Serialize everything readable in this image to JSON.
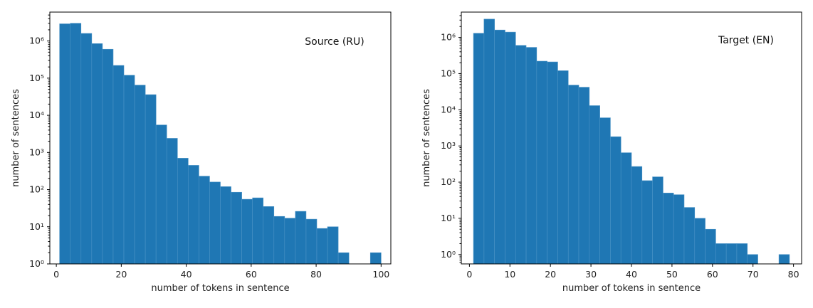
{
  "colors": {
    "bar": "#1f77b4"
  },
  "chart_data": [
    {
      "type": "bar",
      "annotation": "Source (RU)",
      "xlabel": "number of tokens in sentence",
      "ylabel": "number of sentences",
      "yscale": "log",
      "xlim": [
        -2,
        103
      ],
      "ylim": [
        1,
        6000000
      ],
      "xticks": [
        0,
        20,
        40,
        60,
        80,
        100
      ],
      "xtick_labels": [
        "0",
        "20",
        "40",
        "60",
        "80",
        "100"
      ],
      "yticks": [
        1,
        10,
        100,
        1000,
        10000,
        100000,
        1000000
      ],
      "ytick_labels": [
        "10⁰",
        "10¹",
        "10²",
        "10³",
        "10⁴",
        "10⁵",
        "10⁶"
      ],
      "bins": [
        1.0,
        4.3,
        7.6,
        10.9,
        14.2,
        17.5,
        20.8,
        24.1,
        27.4,
        30.7,
        34.0,
        37.3,
        40.6,
        43.9,
        47.2,
        50.5,
        53.8,
        57.1,
        60.4,
        63.7,
        67.0,
        70.3,
        73.6,
        76.9,
        80.2,
        83.5,
        86.8,
        90.1,
        93.4,
        96.7,
        100.0
      ],
      "counts": [
        2900000,
        3000000,
        1600000,
        850000,
        600000,
        220000,
        120000,
        65000,
        36000,
        5500,
        2400,
        700,
        450,
        230,
        160,
        120,
        85,
        55,
        60,
        35,
        19,
        17,
        26,
        16,
        9,
        10,
        2,
        0,
        0,
        2
      ]
    },
    {
      "type": "bar",
      "annotation": "Target (EN)",
      "xlabel": "number of tokens in sentence",
      "ylabel": "number of sentences",
      "yscale": "log",
      "xlim": [
        -2,
        82
      ],
      "ylim": [
        0.55,
        5000000
      ],
      "xticks": [
        0,
        10,
        20,
        30,
        40,
        50,
        60,
        70,
        80
      ],
      "xtick_labels": [
        "0",
        "10",
        "20",
        "30",
        "40",
        "50",
        "60",
        "70",
        "80"
      ],
      "yticks": [
        1,
        10,
        100,
        1000,
        10000,
        100000,
        1000000
      ],
      "ytick_labels": [
        "10⁰",
        "10¹",
        "10²",
        "10³",
        "10⁴",
        "10⁵",
        "10⁶"
      ],
      "bins": [
        1.0,
        3.6,
        6.2,
        8.8,
        11.4,
        14.0,
        16.6,
        19.2,
        21.8,
        24.4,
        27.0,
        29.6,
        32.2,
        34.8,
        37.4,
        40.0,
        42.6,
        45.2,
        47.8,
        50.4,
        53.0,
        55.6,
        58.2,
        60.8,
        63.4,
        66.0,
        68.6,
        71.2,
        73.8,
        76.4,
        79.0
      ],
      "counts": [
        1300000,
        3200000,
        1600000,
        1400000,
        600000,
        530000,
        220000,
        210000,
        120000,
        48000,
        42000,
        13000,
        6000,
        1800,
        650,
        270,
        110,
        140,
        50,
        45,
        20,
        10,
        5,
        2,
        2,
        2,
        1,
        0,
        0,
        1
      ]
    }
  ]
}
